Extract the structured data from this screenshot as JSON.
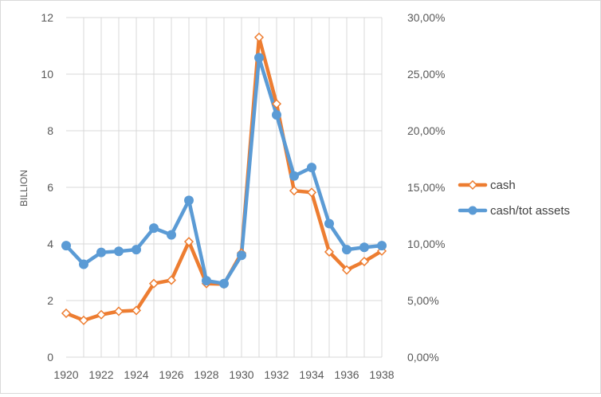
{
  "chart_data": {
    "type": "line",
    "title": "",
    "xlabel": "",
    "ylabel": "BILLION",
    "y2label": "",
    "grid": true,
    "legend_position": "right",
    "x": [
      1920,
      1921,
      1922,
      1923,
      1924,
      1925,
      1926,
      1927,
      1928,
      1929,
      1930,
      1931,
      1932,
      1933,
      1934,
      1935,
      1936,
      1937,
      1938
    ],
    "x_ticks": [
      "1920",
      "1922",
      "1924",
      "1926",
      "1928",
      "1930",
      "1932",
      "1934",
      "1936",
      "1938"
    ],
    "ylim": [
      0,
      12
    ],
    "y_ticks": [
      "0",
      "2",
      "4",
      "6",
      "8",
      "10",
      "12"
    ],
    "y2lim": [
      0,
      30
    ],
    "y2_ticks": [
      "0,00%",
      "5,00%",
      "10,00%",
      "15,00%",
      "20,00%",
      "25,00%",
      "30,00%"
    ],
    "series": [
      {
        "name": "cash",
        "axis": "left",
        "color": "#ED7D31",
        "marker": "diamond",
        "values": [
          1.55,
          1.3,
          1.5,
          1.62,
          1.65,
          2.6,
          2.72,
          4.08,
          2.6,
          2.58,
          3.68,
          11.3,
          8.95,
          5.88,
          5.82,
          3.72,
          3.08,
          3.38,
          3.75
        ]
      },
      {
        "name": "cash/tot assets",
        "axis": "right",
        "color": "#5B9BD5",
        "marker": "circle",
        "values": [
          9.85,
          8.2,
          9.25,
          9.35,
          9.5,
          11.4,
          10.8,
          13.85,
          6.75,
          6.5,
          9.0,
          26.45,
          21.4,
          16.0,
          16.75,
          11.8,
          9.5,
          9.7,
          9.85
        ]
      }
    ]
  }
}
